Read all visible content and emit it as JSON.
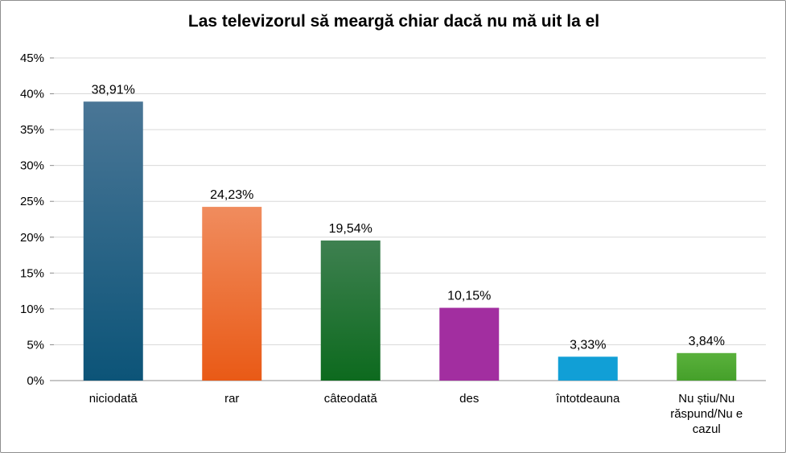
{
  "chart_data": {
    "type": "bar",
    "title": "Las televizorul să meargă chiar dacă nu mă uit la el",
    "categories": [
      [
        "niciodată"
      ],
      [
        "rar"
      ],
      [
        "câteodată"
      ],
      [
        "des"
      ],
      [
        "întotdeauna"
      ],
      [
        "Nu știu/Nu",
        "răspund/Nu e",
        "cazul"
      ]
    ],
    "values": [
      38.91,
      24.23,
      19.54,
      10.15,
      3.33,
      3.84
    ],
    "data_labels": [
      "38,91%",
      "24,23%",
      "19,54%",
      "10,15%",
      "3,33%",
      "3,84%"
    ],
    "ylim": [
      0,
      45
    ],
    "yticks": [
      0,
      5,
      10,
      15,
      20,
      25,
      30,
      35,
      40,
      45
    ],
    "ytick_labels": [
      "0%",
      "5%",
      "10%",
      "15%",
      "20%",
      "25%",
      "30%",
      "35%",
      "40%",
      "45%"
    ],
    "grid": true,
    "legend": "none",
    "bar_colors": [
      [
        "#4a7696",
        "#0c5478"
      ],
      [
        "#f08c5e",
        "#e95a16"
      ],
      [
        "#3e8050",
        "#0d6a1e"
      ],
      [
        "#a22ea0",
        "#a22ea0"
      ],
      [
        "#119fd6",
        "#119fd6"
      ],
      [
        "#5ab13c",
        "#45a02a"
      ]
    ],
    "gridline_color": "#d9d9d9",
    "axis_color": "#8c8c8c"
  }
}
